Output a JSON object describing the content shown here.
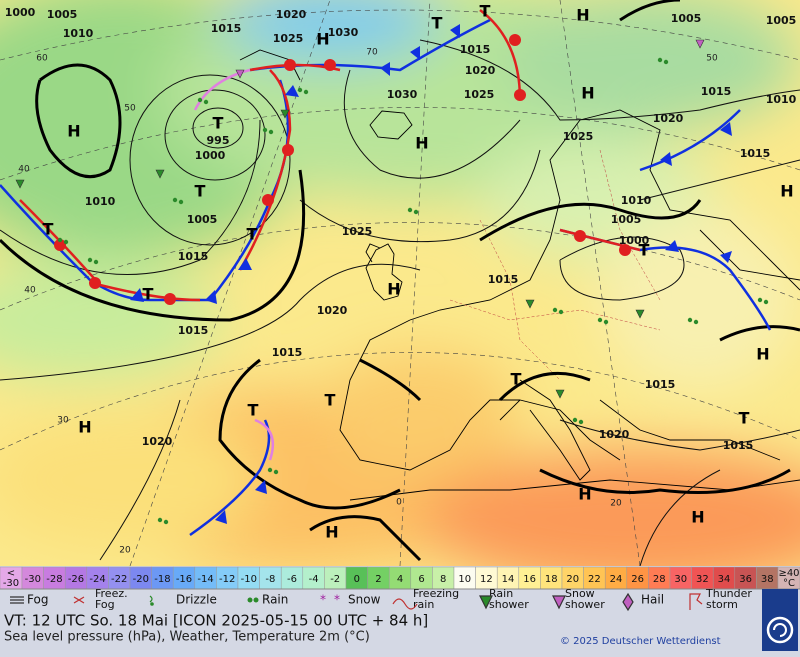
{
  "map": {
    "pressure_labels": [
      "1000",
      "1005",
      "1010",
      "1015",
      "1020",
      "1025",
      "1030",
      "1015",
      "1020",
      "1025",
      "1030",
      "1025",
      "1005",
      "1005",
      "1015",
      "1010",
      "1020",
      "1015",
      "995",
      "1000",
      "1005",
      "1010",
      "1015",
      "1015",
      "1025",
      "1010",
      "1005",
      "1000",
      "1015",
      "1020",
      "1015",
      "1020",
      "1015",
      "1020",
      "1015"
    ],
    "centers": [
      "H",
      "T",
      "T",
      "T",
      "T",
      "T",
      "H",
      "T",
      "T",
      "H",
      "H",
      "H",
      "H",
      "T",
      "H",
      "H",
      "T",
      "T",
      "T",
      "T",
      "H",
      "H",
      "H",
      "H"
    ],
    "grid_labels": [
      "50",
      "40",
      "40",
      "30",
      "20",
      "60",
      "70",
      "50",
      "20",
      "0"
    ]
  },
  "scale": {
    "first": [
      "<",
      "-30"
    ],
    "values": [
      "-30",
      "-28",
      "-26",
      "-24",
      "-22",
      "-20",
      "-18",
      "-16",
      "-14",
      "-12",
      "-10",
      "-8",
      "-6",
      "-4",
      "-2",
      "0",
      "2",
      "4",
      "6",
      "8",
      "10",
      "12",
      "14",
      "16",
      "18",
      "20",
      "22",
      "24",
      "26",
      "28",
      "30",
      "32",
      "34",
      "36",
      "38"
    ],
    "last": [
      "≥40",
      "°C"
    ],
    "first_color": "#e4a8e8",
    "colors": [
      "#d488dc",
      "#c87ce0",
      "#b478e4",
      "#a482ec",
      "#9490f0",
      "#7c88f0",
      "#6c98f4",
      "#68aaf8",
      "#74bcf8",
      "#84ccf8",
      "#94dcf4",
      "#a4e4ec",
      "#acecdc",
      "#b4f0cc",
      "#bcf0bc",
      "#58c058",
      "#74d064",
      "#94dc74",
      "#b0e890",
      "#c8f0a8",
      "#fcfcf0",
      "#fffad4",
      "#fff4b4",
      "#fff094",
      "#ffe47c",
      "#ffd468",
      "#ffc454",
      "#ffac44",
      "#ff9444",
      "#ff7c54",
      "#f86464",
      "#f05454",
      "#e04c4c",
      "#c85454",
      "#b47464"
    ],
    "last_color": "#d4b4b4"
  },
  "legend": [
    [
      "Fog"
    ],
    [
      "Freez.",
      "Fog"
    ],
    [
      "Drizzle"
    ],
    [
      "Rain"
    ],
    [
      "Snow"
    ],
    [
      "Freezing",
      "rain"
    ],
    [
      "Rain",
      "shower"
    ],
    [
      "Snow",
      "shower"
    ],
    [
      "Hail"
    ],
    [
      "Thunder",
      "storm"
    ]
  ],
  "footer": {
    "valid_time": "VT: 12 UTC So.  18 Mai [ICON 2025-05-15  00 UTC + 84 h]",
    "description": "Sea level pressure (hPa), Weather, Temperature 2m (°C)",
    "copyright": "© 2025 Deutscher Wetterdienst",
    "logo": "DWD"
  }
}
